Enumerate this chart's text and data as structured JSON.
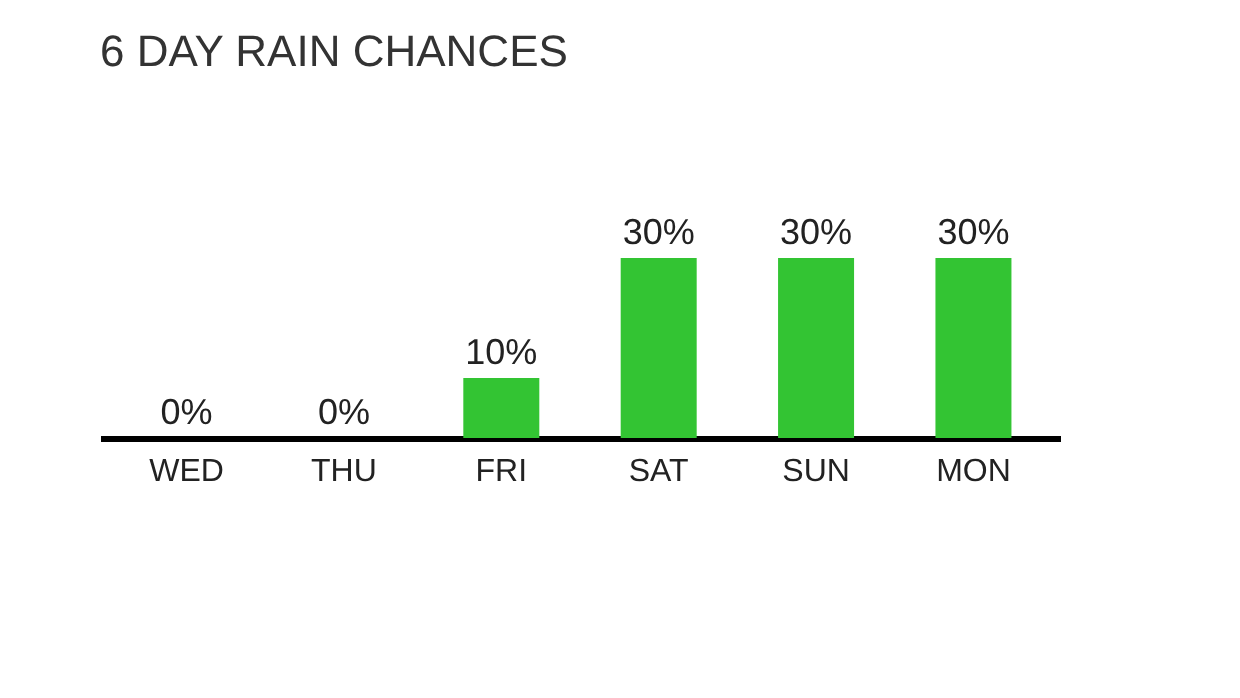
{
  "chart_data": {
    "type": "bar",
    "title": "6 DAY RAIN CHANCES",
    "categories": [
      "WED",
      "THU",
      "FRI",
      "SAT",
      "SUN",
      "MON"
    ],
    "values": [
      0,
      0,
      10,
      30,
      30,
      30
    ],
    "value_labels": [
      "0%",
      "0%",
      "10%",
      "30%",
      "30%",
      "30%"
    ],
    "color": "#33c433",
    "grid": false
  }
}
